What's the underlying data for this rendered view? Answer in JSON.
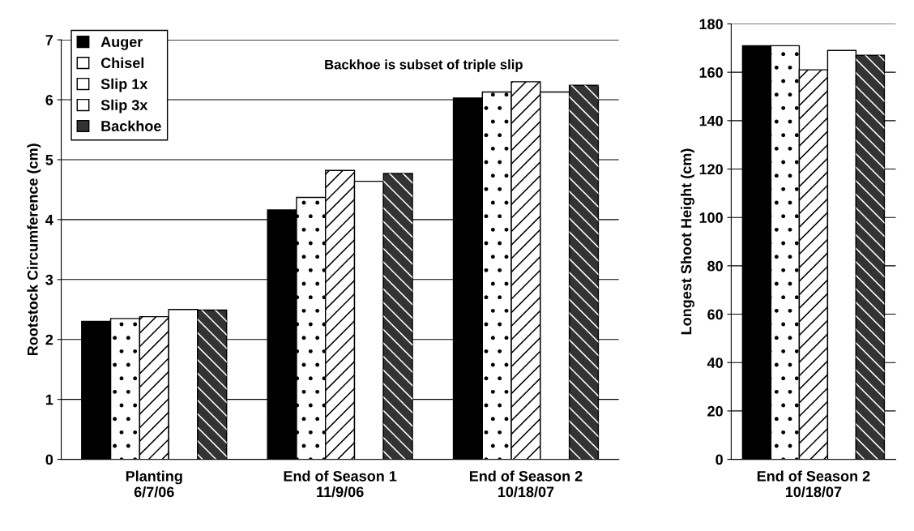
{
  "chart_data": [
    {
      "type": "bar",
      "ylabel": "Rootstock Circumference (cm)",
      "categories": [
        "Planting\n6/7/06",
        "End of Season 1\n11/9/06",
        "End of Season 2\n10/18/07"
      ],
      "series": [
        {
          "name": "Auger",
          "color": "#000000",
          "values": [
            2.3,
            4.16,
            6.03
          ]
        },
        {
          "name": "Chisel",
          "color": "#ffffff",
          "values": [
            2.35,
            4.37,
            6.13
          ]
        },
        {
          "name": "Slip 1x",
          "color": "#ffffff",
          "values": [
            2.38,
            4.82,
            6.3
          ]
        },
        {
          "name": "Slip 3x",
          "color": "#ffffff",
          "values": [
            2.5,
            4.64,
            6.13
          ]
        },
        {
          "name": "Backhoe",
          "color": "#333333",
          "values": [
            2.49,
            4.77,
            6.24
          ]
        }
      ],
      "ylim": [
        0,
        7
      ],
      "yticks": [
        0,
        1,
        2,
        3,
        4,
        5,
        6,
        7
      ],
      "grid": "y",
      "legend": "top left",
      "annotations": [
        "Backhoe is subset of triple slip"
      ]
    },
    {
      "type": "bar",
      "ylabel": "Longest Shoot Height (cm)",
      "categories": [
        null,
        null,
        "End of Season 2\n10/18/07",
        null,
        null
      ],
      "values": [
        171,
        171,
        161,
        169,
        167
      ],
      "colors": [
        "#000000",
        "#ffffff",
        "#ffffff",
        "#ffffff",
        "#333333"
      ],
      "ylim": [
        0,
        180
      ],
      "yticks": [
        0,
        20,
        40,
        60,
        80,
        100,
        120,
        140,
        160,
        180
      ],
      "grid": "y"
    }
  ]
}
